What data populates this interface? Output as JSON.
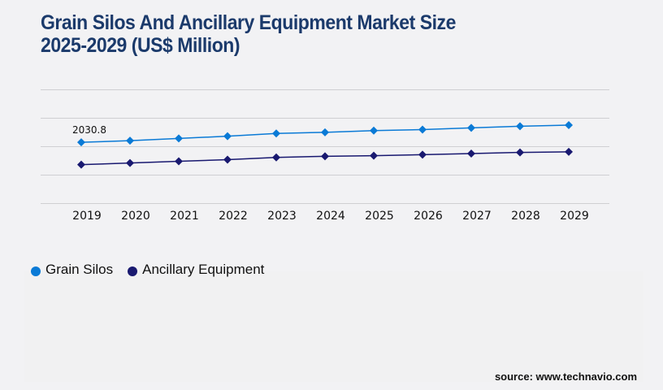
{
  "title": {
    "line1": "Grain Silos And Ancillary Equipment Market Size",
    "line2": "2025-2029 (US$ Million)"
  },
  "source": "source: www.technavio.com",
  "colors": {
    "grain_silos": "#0a7ad6",
    "ancillary_equipment": "#191970",
    "title": "#1b3a6b",
    "grid": "#cfcfd2"
  },
  "chart_data": {
    "type": "line",
    "title": "Grain Silos And Ancillary Equipment Market Size 2025-2029 (US$ Million)",
    "xlabel": "",
    "ylabel": "",
    "x": [
      "2019",
      "2020",
      "2021",
      "2022",
      "2023",
      "2024",
      "2025",
      "2026",
      "2027",
      "2028",
      "2029"
    ],
    "ylim": [
      0,
      3800
    ],
    "yticks": [
      0,
      950,
      1900,
      2850,
      3800
    ],
    "show_ytick_labels": false,
    "grid": true,
    "legend_position": "bottom-left",
    "series": [
      {
        "name": "Grain Silos",
        "color": "#0a7ad6",
        "values": [
          2030.8,
          2086,
          2160,
          2236,
          2328,
          2365,
          2421,
          2458,
          2514,
          2570,
          2607
        ]
      },
      {
        "name": "Ancillary Equipment",
        "color": "#191970",
        "values": [
          1285,
          1341,
          1397,
          1453,
          1527,
          1564,
          1583,
          1620,
          1657,
          1694,
          1713
        ]
      }
    ],
    "annotations": [
      {
        "series": "Grain Silos",
        "x": "2019",
        "text": "2030.8"
      }
    ]
  }
}
